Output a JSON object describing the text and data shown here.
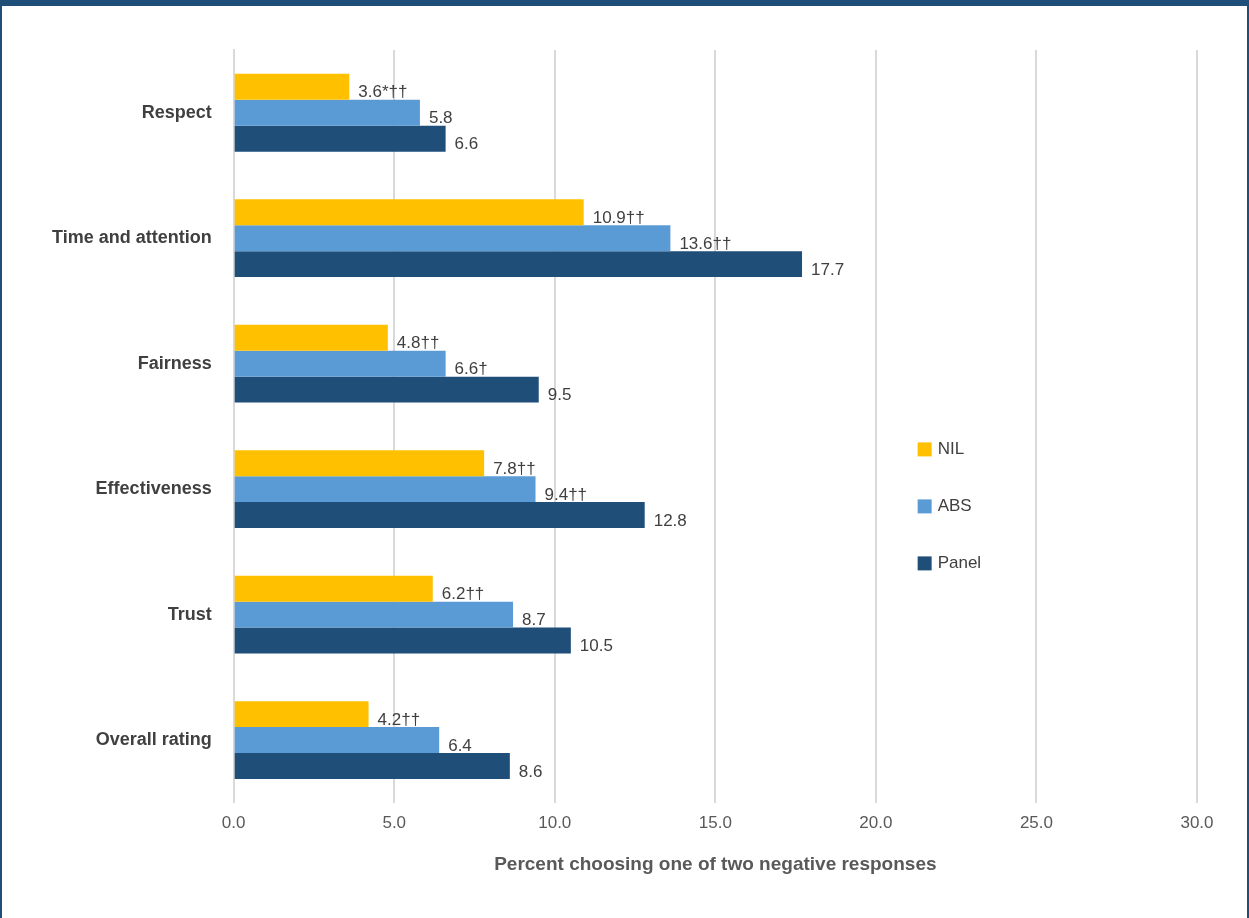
{
  "chart_data": {
    "type": "bar",
    "orientation": "horizontal",
    "xlabel": "Percent choosing one of two negative responses",
    "categories": [
      "Respect",
      "Time and attention",
      "Fairness",
      "Effectiveness",
      "Trust",
      "Overall rating"
    ],
    "series": [
      {
        "name": "NIL",
        "color": "#ffc000",
        "values": [
          3.6,
          10.9,
          4.8,
          7.8,
          6.2,
          4.2
        ],
        "value_labels": [
          "3.6*††",
          "10.9††",
          "4.8††",
          "7.8††",
          "6.2††",
          "4.2††"
        ]
      },
      {
        "name": "ABS",
        "color": "#5b9bd5",
        "values": [
          5.8,
          13.6,
          6.6,
          9.4,
          8.7,
          6.4
        ],
        "value_labels": [
          "5.8",
          "13.6††",
          "6.6†",
          "9.4††",
          "8.7",
          "6.4"
        ]
      },
      {
        "name": "Panel",
        "color": "#1f4e79",
        "values": [
          6.6,
          17.7,
          9.5,
          12.8,
          10.5,
          8.6
        ],
        "value_labels": [
          "6.6",
          "17.7",
          "9.5",
          "12.8",
          "10.5",
          "8.6"
        ]
      }
    ],
    "xlim": [
      0,
      30
    ],
    "xticks": [
      {
        "value": 0,
        "label": "0.0"
      },
      {
        "value": 5,
        "label": "5.0"
      },
      {
        "value": 10,
        "label": "10.0"
      },
      {
        "value": 15,
        "label": "15.0"
      },
      {
        "value": 20,
        "label": "20.0"
      },
      {
        "value": 25,
        "label": "25.0"
      },
      {
        "value": 30,
        "label": "30.0"
      }
    ],
    "grid": "x",
    "legend": "right"
  }
}
